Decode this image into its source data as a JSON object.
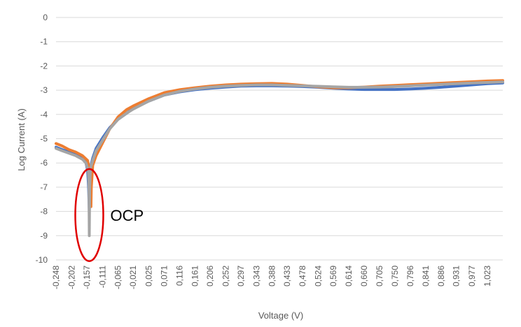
{
  "chart_data": {
    "type": "line",
    "xlabel": "Voltage (V)",
    "ylabel": "Log Current (A)",
    "ylim": [
      -10,
      0
    ],
    "yticks": [
      0,
      -1,
      -2,
      -3,
      -4,
      -5,
      -6,
      -7,
      -8,
      -9,
      -10
    ],
    "xlim": [
      -0.248,
      1.068
    ],
    "xtick_labels": [
      "-0,248",
      "-0,202",
      "-0,157",
      "-0,111",
      "-0,065",
      "-0,021",
      "0,025",
      "0,071",
      "0,116",
      "0,161",
      "0,206",
      "0,252",
      "0,297",
      "0,343",
      "0,388",
      "0,433",
      "0,478",
      "0,524",
      "0,569",
      "0,614",
      "0,660",
      "0,705",
      "0,750",
      "0,796",
      "0,841",
      "0,886",
      "0,931",
      "0,977",
      "1,023"
    ],
    "xtick_values": [
      -0.248,
      -0.202,
      -0.157,
      -0.111,
      -0.065,
      -0.021,
      0.025,
      0.071,
      0.116,
      0.161,
      0.206,
      0.252,
      0.297,
      0.343,
      0.388,
      0.433,
      0.478,
      0.524,
      0.569,
      0.614,
      0.66,
      0.705,
      0.75,
      0.796,
      0.841,
      0.886,
      0.931,
      0.977,
      1.023
    ],
    "grid": true,
    "legend": "none",
    "series": [
      {
        "color": "#4472C4",
        "x": [
          -0.248,
          -0.23,
          -0.21,
          -0.19,
          -0.17,
          -0.16,
          -0.155,
          -0.152,
          -0.15,
          -0.149,
          -0.148,
          -0.145,
          -0.14,
          -0.13,
          -0.11,
          -0.09,
          -0.065,
          -0.04,
          -0.021,
          0.025,
          0.071,
          0.116,
          0.161,
          0.206,
          0.252,
          0.297,
          0.343,
          0.388,
          0.433,
          0.478,
          0.524,
          0.569,
          0.614,
          0.66,
          0.705,
          0.75,
          0.796,
          0.841,
          0.886,
          0.931,
          0.977,
          1.023,
          1.068
        ],
        "y": [
          -5.35,
          -5.45,
          -5.55,
          -5.65,
          -5.8,
          -6.0,
          -6.3,
          -7.0,
          -8.0,
          -7.0,
          -6.4,
          -6.1,
          -5.8,
          -5.4,
          -4.95,
          -4.55,
          -4.2,
          -3.95,
          -3.75,
          -3.45,
          -3.2,
          -3.07,
          -2.98,
          -2.92,
          -2.87,
          -2.83,
          -2.82,
          -2.82,
          -2.83,
          -2.85,
          -2.88,
          -2.92,
          -2.95,
          -2.97,
          -2.97,
          -2.97,
          -2.95,
          -2.92,
          -2.88,
          -2.83,
          -2.78,
          -2.73,
          -2.7
        ]
      },
      {
        "color": "#ED7D31",
        "x": [
          -0.248,
          -0.23,
          -0.21,
          -0.19,
          -0.17,
          -0.155,
          -0.148,
          -0.146,
          -0.145,
          -0.144,
          -0.14,
          -0.13,
          -0.11,
          -0.09,
          -0.065,
          -0.04,
          -0.021,
          0.025,
          0.071,
          0.116,
          0.161,
          0.206,
          0.252,
          0.297,
          0.343,
          0.388,
          0.433,
          0.478,
          0.524,
          0.569,
          0.614,
          0.66,
          0.705,
          0.75,
          0.796,
          0.841,
          0.886,
          0.931,
          0.977,
          1.023,
          1.068
        ],
        "y": [
          -5.2,
          -5.3,
          -5.45,
          -5.55,
          -5.7,
          -5.9,
          -6.4,
          -7.1,
          -7.8,
          -7.0,
          -6.1,
          -5.7,
          -5.15,
          -4.6,
          -4.1,
          -3.8,
          -3.65,
          -3.35,
          -3.1,
          -2.98,
          -2.9,
          -2.83,
          -2.78,
          -2.75,
          -2.73,
          -2.72,
          -2.75,
          -2.8,
          -2.86,
          -2.9,
          -2.9,
          -2.87,
          -2.83,
          -2.8,
          -2.77,
          -2.74,
          -2.71,
          -2.68,
          -2.65,
          -2.62,
          -2.6
        ]
      },
      {
        "color": "#A5A5A5",
        "x": [
          -0.248,
          -0.23,
          -0.21,
          -0.19,
          -0.17,
          -0.16,
          -0.153,
          -0.151,
          -0.15,
          -0.149,
          -0.148,
          -0.146,
          -0.14,
          -0.13,
          -0.11,
          -0.09,
          -0.065,
          -0.04,
          -0.021,
          0.025,
          0.071,
          0.116,
          0.161,
          0.206,
          0.252,
          0.297,
          0.343,
          0.388,
          0.433,
          0.478,
          0.524,
          0.569,
          0.614,
          0.66,
          0.705,
          0.75,
          0.796,
          0.841,
          0.886,
          0.931,
          0.977,
          1.023,
          1.068
        ],
        "y": [
          -5.4,
          -5.5,
          -5.6,
          -5.7,
          -5.85,
          -6.0,
          -6.3,
          -7.0,
          -9.0,
          -7.2,
          -6.6,
          -6.2,
          -5.9,
          -5.5,
          -5.05,
          -4.6,
          -4.2,
          -3.95,
          -3.78,
          -3.45,
          -3.2,
          -3.05,
          -2.95,
          -2.88,
          -2.83,
          -2.8,
          -2.78,
          -2.78,
          -2.8,
          -2.82,
          -2.84,
          -2.86,
          -2.88,
          -2.88,
          -2.87,
          -2.85,
          -2.82,
          -2.79,
          -2.76,
          -2.73,
          -2.7,
          -2.68,
          -2.66
        ]
      }
    ],
    "annotations": [
      {
        "text": "OCP",
        "x": -0.15,
        "y": -8.15,
        "ry": 1.0,
        "color": "#E00000"
      }
    ]
  }
}
